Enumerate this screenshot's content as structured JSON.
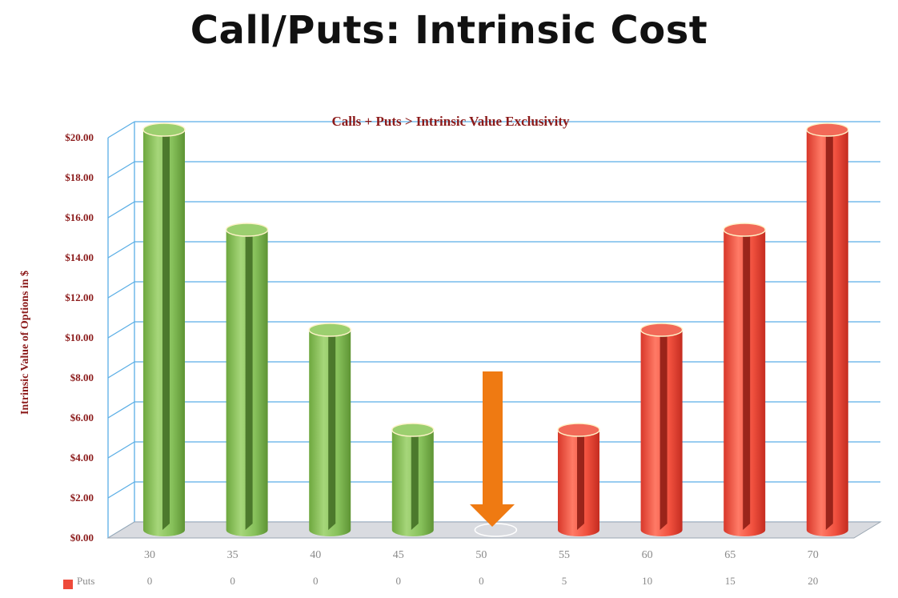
{
  "slide": {
    "title": "Call/Puts: Intrinsic Cost"
  },
  "chart_data": {
    "type": "bar",
    "title": "Calls + Puts > Intrinsic Value Exclusivity",
    "xlabel": "",
    "ylabel": "Intrinsic Value of Options in $",
    "ylim": [
      0,
      20
    ],
    "yticks": [
      "$0.00",
      "$2.00",
      "$4.00",
      "$6.00",
      "$8.00",
      "$10.00",
      "$12.00",
      "$14.00",
      "$16.00",
      "$18.00",
      "$20.00"
    ],
    "categories": [
      "30",
      "35",
      "40",
      "45",
      "50",
      "55",
      "60",
      "65",
      "70"
    ],
    "values": [
      20,
      15,
      10,
      5,
      0,
      5,
      10,
      15,
      20
    ],
    "bar_kind": [
      "call",
      "call",
      "call",
      "call",
      "call",
      "put",
      "put",
      "put",
      "put"
    ],
    "legend_table": {
      "series_name": "Puts",
      "values": [
        "0",
        "0",
        "0",
        "0",
        "0",
        "5",
        "10",
        "15",
        "20"
      ]
    },
    "grid": true,
    "annotation": "down-arrow",
    "colors": {
      "call": "#8cc65a",
      "put": "#ee4a3a",
      "arrow": "#ef7a12",
      "grid": "#5aaee6",
      "label": "#8b1a1a"
    }
  }
}
